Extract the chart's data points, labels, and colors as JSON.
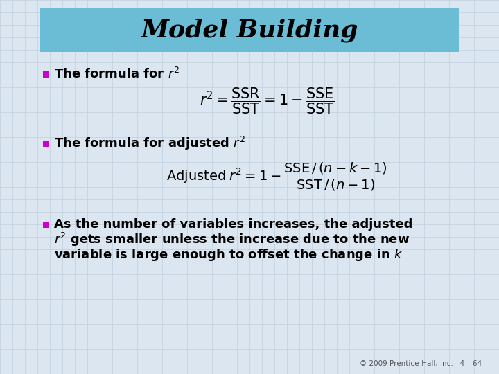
{
  "title": "Model Building",
  "title_bg_color": "#6BBDD6",
  "bg_color": "#DCE6F0",
  "grid_color": "#C0CFDE",
  "bullet_color": "#CC00CC",
  "text_color": "#000000",
  "footer": "© 2009 Prentice-Hall, Inc.   4 – 64",
  "formula1": "$r^2 = \\dfrac{\\mathrm{SSR}}{\\mathrm{SST}} = 1 - \\dfrac{\\mathrm{SSE}}{\\mathrm{SST}}$",
  "formula2": "$\\mathrm{Adjusted}\\; r^2 = 1 - \\dfrac{\\mathrm{SSE}\\,/\\,(n - k - 1)}{\\mathrm{SST}\\,/\\,(n - 1)}$"
}
